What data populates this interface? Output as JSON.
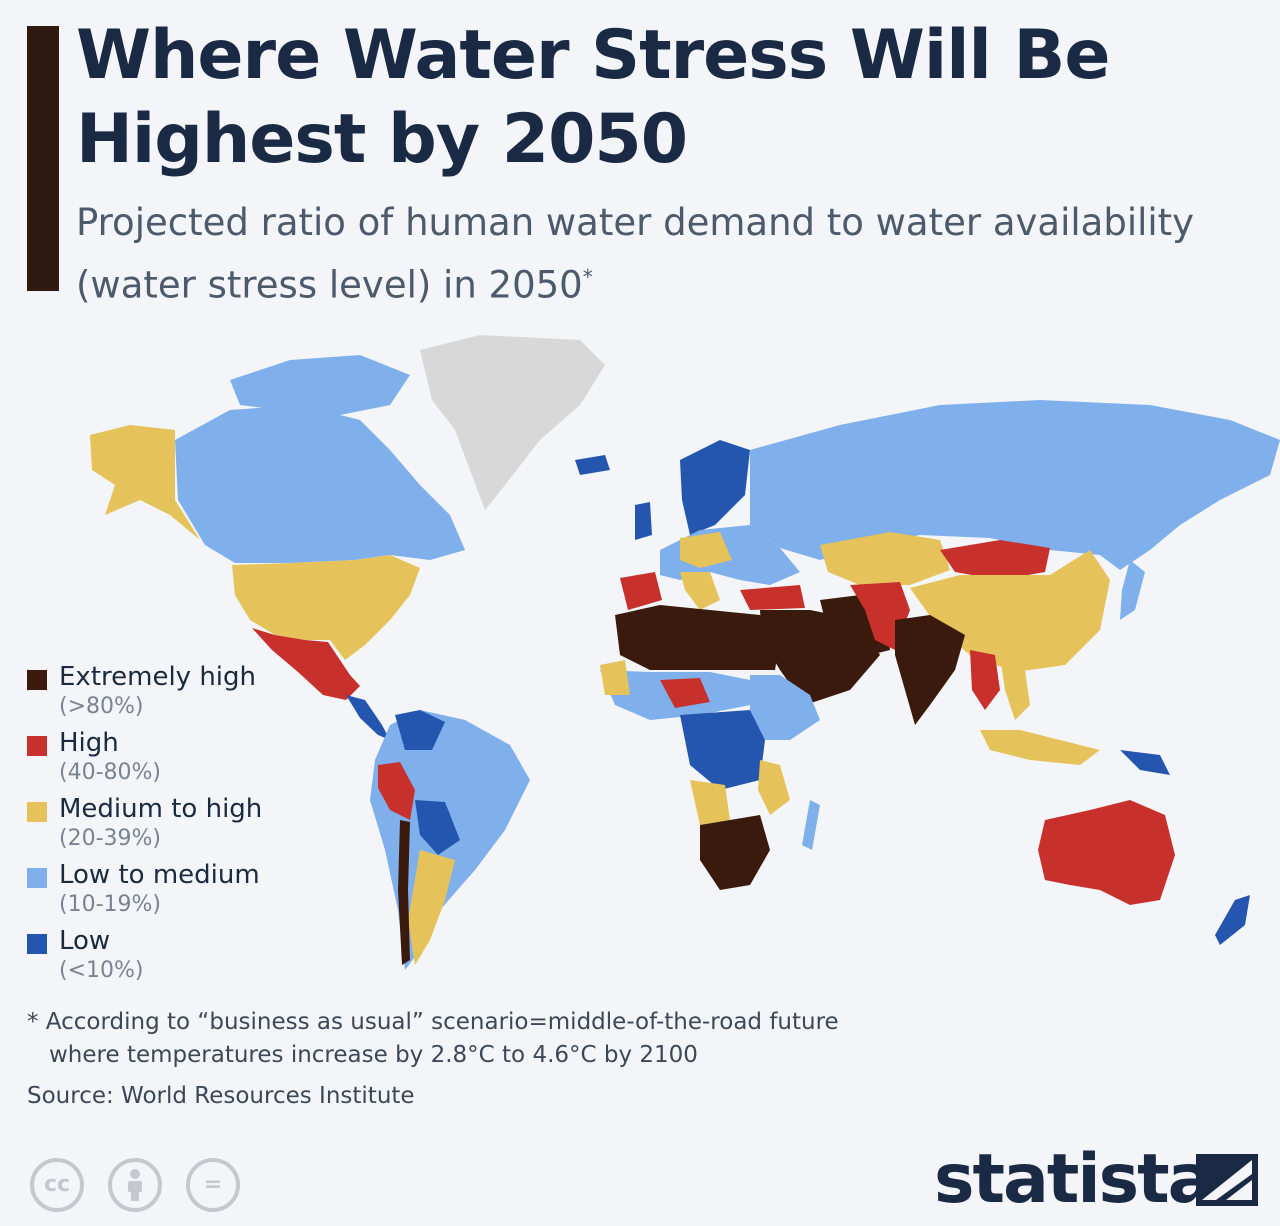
{
  "header": {
    "title": "Where Water Stress Will Be Highest by 2050",
    "subtitle": "Projected ratio of human water demand to water availability (water stress level) in 2050",
    "subtitle_mark": "*"
  },
  "colors": {
    "accent_bar": "#2e1a10",
    "extremely_high": "#3a1a0c",
    "high": "#c8302b",
    "medium_to_high": "#e5c35a",
    "low_to_medium": "#7fb0ec",
    "low": "#2456b0",
    "no_data": "#d8d8d8",
    "ocean": "#f3f5f8"
  },
  "legend": [
    {
      "label": "Extremely high",
      "range": "(>80%)",
      "color": "#3a1a0c"
    },
    {
      "label": "High",
      "range": "(40-80%)",
      "color": "#c8302b"
    },
    {
      "label": "Medium to high",
      "range": "(20-39%)",
      "color": "#e5c35a"
    },
    {
      "label": "Low to medium",
      "range": "(10-19%)",
      "color": "#7fb0ec"
    },
    {
      "label": "Low",
      "range": "(<10%)",
      "color": "#2456b0"
    }
  ],
  "footnote": {
    "line1": "* According to “business as usual” scenario=middle-of-the-road future",
    "line2": "where temperatures increase by 2.8°C to 4.6°C by 2100"
  },
  "source": "Source: World Resources Institute",
  "license_icons": [
    {
      "name": "creative-commons-icon",
      "glyph": "cc"
    },
    {
      "name": "attribution-icon",
      "glyph": "i"
    },
    {
      "name": "no-derivatives-icon",
      "glyph": "="
    }
  ],
  "brand": {
    "name": "statista"
  }
}
